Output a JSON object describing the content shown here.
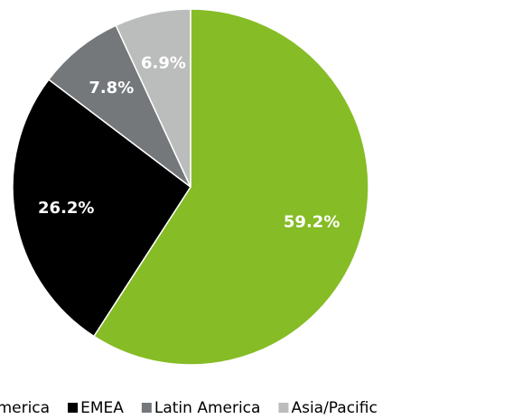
{
  "chart_data": {
    "type": "pie",
    "categories": [
      "North America",
      "EMEA",
      "Latin America",
      "Asia/Pacific"
    ],
    "values": [
      59.2,
      26.2,
      7.8,
      6.9
    ],
    "value_labels": [
      "59.2%",
      "26.2%",
      "7.8%",
      "6.9%"
    ],
    "colors": [
      "#86bc25",
      "#000000",
      "#75787b",
      "#bbbcbc"
    ],
    "legend": "bottom"
  }
}
